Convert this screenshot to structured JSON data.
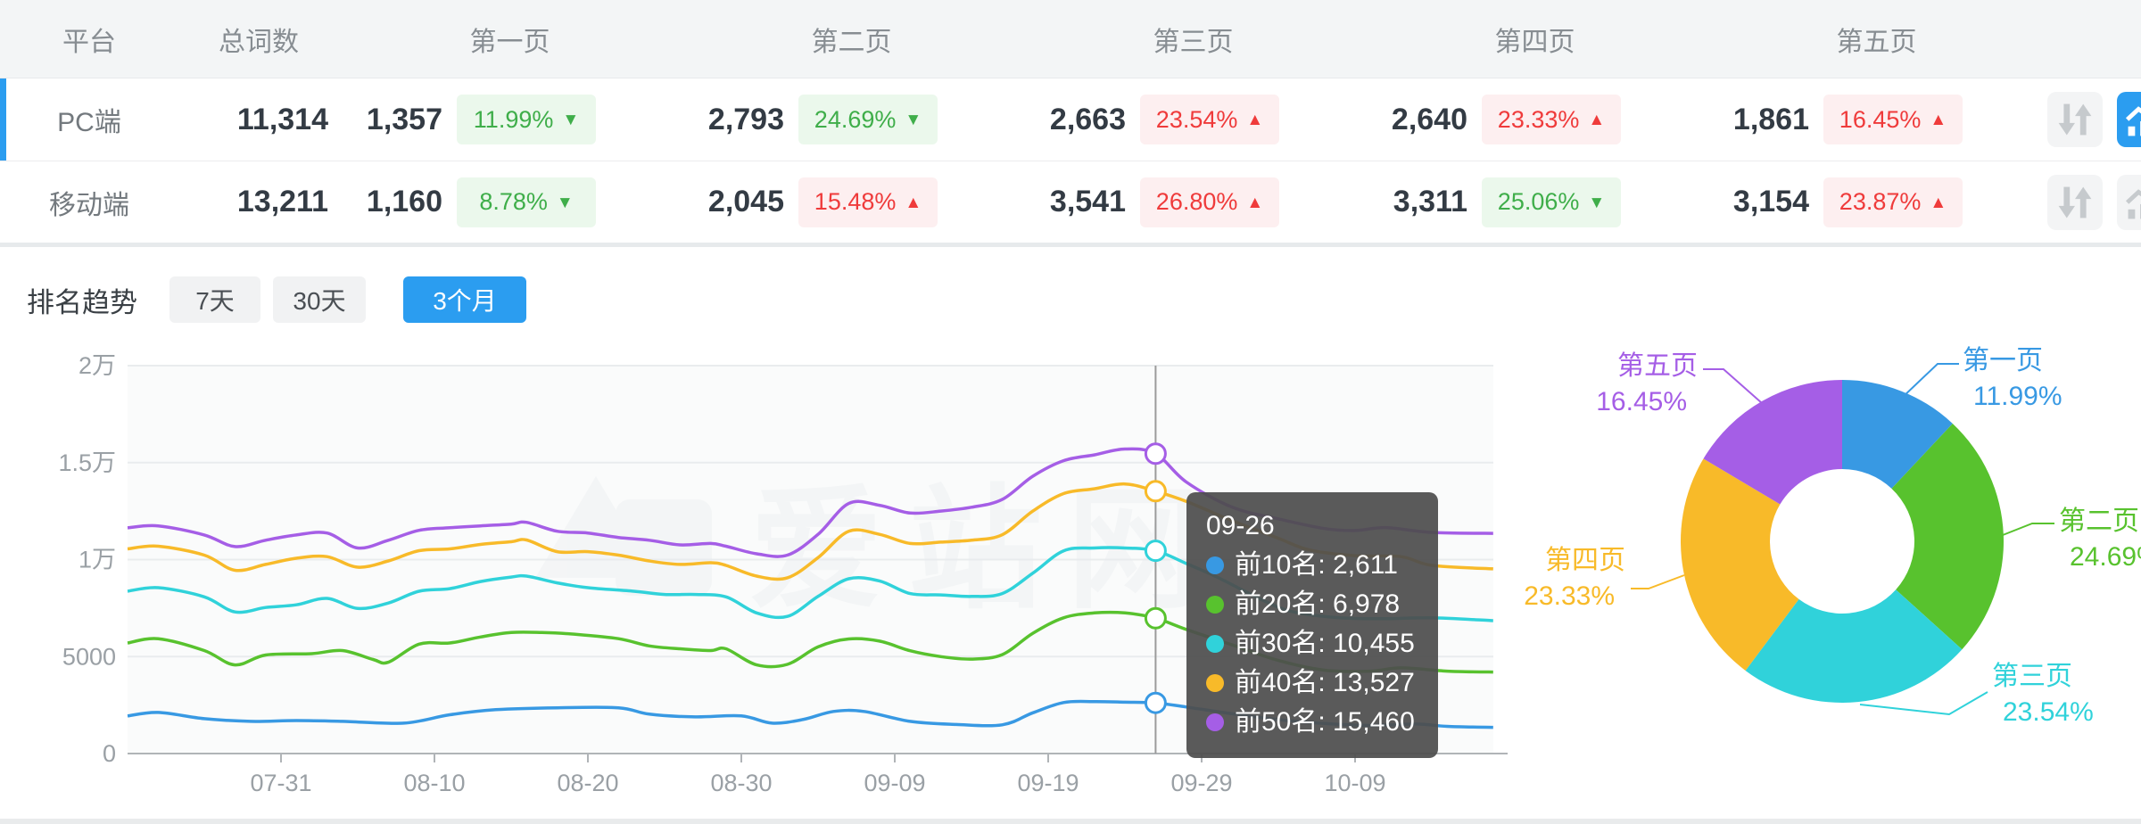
{
  "table": {
    "headers": [
      "平台",
      "总词数",
      "第一页",
      "第二页",
      "第三页",
      "第四页",
      "第五页"
    ],
    "rows": [
      {
        "platform": "PC端",
        "total": "11,314",
        "active": true,
        "pages": [
          {
            "value": "1,357",
            "pct": "11.99%",
            "dir": "down",
            "tone": "green"
          },
          {
            "value": "2,793",
            "pct": "24.69%",
            "dir": "down",
            "tone": "green"
          },
          {
            "value": "2,663",
            "pct": "23.54%",
            "dir": "up",
            "tone": "red"
          },
          {
            "value": "2,640",
            "pct": "23.33%",
            "dir": "up",
            "tone": "red"
          },
          {
            "value": "1,861",
            "pct": "16.45%",
            "dir": "up",
            "tone": "red"
          }
        ]
      },
      {
        "platform": "移动端",
        "total": "13,211",
        "active": false,
        "pages": [
          {
            "value": "1,160",
            "pct": "8.78%",
            "dir": "down",
            "tone": "green"
          },
          {
            "value": "2,045",
            "pct": "15.48%",
            "dir": "up",
            "tone": "red"
          },
          {
            "value": "3,541",
            "pct": "26.80%",
            "dir": "up",
            "tone": "red"
          },
          {
            "value": "3,311",
            "pct": "25.06%",
            "dir": "down",
            "tone": "green"
          },
          {
            "value": "3,154",
            "pct": "23.87%",
            "dir": "up",
            "tone": "red"
          }
        ]
      }
    ]
  },
  "trend": {
    "title": "排名趋势",
    "ranges": [
      "7天",
      "30天",
      "3个月"
    ],
    "active_range": "3个月"
  },
  "watermark": "爱站网",
  "colors": {
    "accent": "#2b9df0",
    "badge_green": "#3fae4a",
    "badge_red": "#ef3b3b",
    "series": {
      "top10": "#3899e3",
      "top20": "#58c22e",
      "top30": "#30d2da",
      "top40": "#f8ba29",
      "top50": "#a55ee6"
    }
  },
  "tooltip": {
    "title": "09-26",
    "items": [
      {
        "label": "前10名",
        "value": "2,611",
        "color": "#3899e3"
      },
      {
        "label": "前20名",
        "value": "6,978",
        "color": "#58c22e"
      },
      {
        "label": "前30名",
        "value": "10,455",
        "color": "#30d2da"
      },
      {
        "label": "前40名",
        "value": "13,527",
        "color": "#f8ba29"
      },
      {
        "label": "前50名",
        "value": "15,460",
        "color": "#a55ee6"
      }
    ]
  },
  "chart_data": [
    {
      "type": "line",
      "title": "排名趋势 (3个月)",
      "x_unit": "days since 07-21",
      "x_ticks": [
        {
          "day": 10,
          "label": "07-31"
        },
        {
          "day": 20,
          "label": "08-10"
        },
        {
          "day": 30,
          "label": "08-20"
        },
        {
          "day": 40,
          "label": "08-30"
        },
        {
          "day": 50,
          "label": "09-09"
        },
        {
          "day": 60,
          "label": "09-19"
        },
        {
          "day": 70,
          "label": "09-29"
        },
        {
          "day": 80,
          "label": "10-09"
        }
      ],
      "y_ticks": [
        "0",
        "5000",
        "1万",
        "1.5万",
        "2万"
      ],
      "ylim": [
        0,
        20000
      ],
      "grid": true,
      "crosshair_day": 67,
      "crosshair_date": "09-26",
      "marker_values": [
        2611,
        6978,
        10455,
        13527,
        15460
      ],
      "series": [
        {
          "name": "前10名",
          "color": "#3899e3",
          "points": [
            [
              0,
              1940
            ],
            [
              2,
              2120
            ],
            [
              5,
              1800
            ],
            [
              8,
              1660
            ],
            [
              11,
              1700
            ],
            [
              14,
              1660
            ],
            [
              18,
              1570
            ],
            [
              21,
              2000
            ],
            [
              24,
              2260
            ],
            [
              28,
              2360
            ],
            [
              32,
              2360
            ],
            [
              34,
              2030
            ],
            [
              37,
              1890
            ],
            [
              40,
              1940
            ],
            [
              42,
              1570
            ],
            [
              44,
              1750
            ],
            [
              46,
              2170
            ],
            [
              48,
              2170
            ],
            [
              51,
              1660
            ],
            [
              54,
              1500
            ],
            [
              57,
              1480
            ],
            [
              59,
              2100
            ],
            [
              61,
              2630
            ],
            [
              63,
              2680
            ],
            [
              65,
              2650
            ],
            [
              67,
              2611
            ],
            [
              69,
              2400
            ],
            [
              72,
              2050
            ],
            [
              75,
              1750
            ],
            [
              78,
              1550
            ],
            [
              81,
              1450
            ],
            [
              84,
              1520
            ],
            [
              86,
              1400
            ],
            [
              89,
              1350
            ]
          ]
        },
        {
          "name": "前20名",
          "color": "#58c22e",
          "points": [
            [
              0,
              5700
            ],
            [
              2,
              5920
            ],
            [
              5,
              5310
            ],
            [
              7,
              4570
            ],
            [
              9,
              5080
            ],
            [
              12,
              5150
            ],
            [
              14,
              5310
            ],
            [
              16,
              4850
            ],
            [
              17,
              4710
            ],
            [
              19,
              5640
            ],
            [
              21,
              5700
            ],
            [
              23,
              6010
            ],
            [
              25,
              6240
            ],
            [
              27,
              6240
            ],
            [
              29,
              6160
            ],
            [
              32,
              5920
            ],
            [
              34,
              5550
            ],
            [
              36,
              5400
            ],
            [
              38,
              5310
            ],
            [
              39,
              5400
            ],
            [
              41,
              4570
            ],
            [
              43,
              4600
            ],
            [
              45,
              5500
            ],
            [
              47,
              5910
            ],
            [
              49,
              5800
            ],
            [
              51,
              5300
            ],
            [
              53,
              5000
            ],
            [
              55,
              4870
            ],
            [
              57,
              5100
            ],
            [
              59,
              6200
            ],
            [
              61,
              7000
            ],
            [
              63,
              7250
            ],
            [
              65,
              7250
            ],
            [
              67,
              6978
            ],
            [
              69,
              6400
            ],
            [
              72,
              5600
            ],
            [
              75,
              4800
            ],
            [
              78,
              4300
            ],
            [
              81,
              4250
            ],
            [
              83,
              4420
            ],
            [
              86,
              4250
            ],
            [
              89,
              4200
            ]
          ]
        },
        {
          "name": "前30名",
          "color": "#30d2da",
          "points": [
            [
              0,
              8370
            ],
            [
              2,
              8550
            ],
            [
              5,
              8080
            ],
            [
              7,
              7300
            ],
            [
              9,
              7530
            ],
            [
              11,
              7670
            ],
            [
              13,
              8000
            ],
            [
              15,
              7480
            ],
            [
              17,
              7760
            ],
            [
              19,
              8370
            ],
            [
              21,
              8500
            ],
            [
              23,
              8870
            ],
            [
              25,
              9100
            ],
            [
              26,
              9150
            ],
            [
              28,
              8800
            ],
            [
              30,
              8550
            ],
            [
              33,
              8370
            ],
            [
              35,
              8200
            ],
            [
              37,
              8200
            ],
            [
              39,
              8080
            ],
            [
              41,
              7250
            ],
            [
              43,
              7070
            ],
            [
              45,
              8100
            ],
            [
              47,
              9010
            ],
            [
              49,
              8900
            ],
            [
              51,
              8250
            ],
            [
              53,
              8180
            ],
            [
              55,
              8100
            ],
            [
              57,
              8250
            ],
            [
              59,
              9300
            ],
            [
              61,
              10450
            ],
            [
              63,
              10600
            ],
            [
              65,
              10600
            ],
            [
              67,
              10455
            ],
            [
              69,
              9800
            ],
            [
              71,
              9100
            ],
            [
              74,
              7900
            ],
            [
              76,
              7300
            ],
            [
              79,
              7000
            ],
            [
              82,
              6950
            ],
            [
              85,
              7000
            ],
            [
              89,
              6850
            ]
          ]
        },
        {
          "name": "前40名",
          "color": "#f8ba29",
          "points": [
            [
              0,
              10550
            ],
            [
              2,
              10690
            ],
            [
              5,
              10230
            ],
            [
              7,
              9450
            ],
            [
              9,
              9750
            ],
            [
              11,
              10070
            ],
            [
              13,
              10150
            ],
            [
              15,
              9610
            ],
            [
              17,
              9930
            ],
            [
              19,
              10460
            ],
            [
              21,
              10550
            ],
            [
              23,
              10780
            ],
            [
              25,
              10920
            ],
            [
              26,
              11010
            ],
            [
              28,
              10410
            ],
            [
              30,
              10410
            ],
            [
              32,
              10230
            ],
            [
              34,
              9930
            ],
            [
              36,
              9750
            ],
            [
              38,
              9840
            ],
            [
              39,
              9700
            ],
            [
              41,
              9150
            ],
            [
              43,
              9060
            ],
            [
              45,
              10100
            ],
            [
              47,
              11460
            ],
            [
              49,
              11300
            ],
            [
              51,
              10830
            ],
            [
              53,
              10900
            ],
            [
              55,
              11000
            ],
            [
              57,
              11280
            ],
            [
              59,
              12500
            ],
            [
              61,
              13400
            ],
            [
              63,
              13650
            ],
            [
              65,
              13900
            ],
            [
              67,
              13527
            ],
            [
              69,
              13000
            ],
            [
              72,
              12000
            ],
            [
              75,
              11100
            ],
            [
              77,
              10500
            ],
            [
              80,
              10200
            ],
            [
              83,
              10150
            ],
            [
              85,
              9700
            ],
            [
              89,
              9520
            ]
          ]
        },
        {
          "name": "前50名",
          "color": "#a55ee6",
          "points": [
            [
              0,
              11640
            ],
            [
              2,
              11740
            ],
            [
              5,
              11270
            ],
            [
              7,
              10670
            ],
            [
              9,
              11000
            ],
            [
              11,
              11270
            ],
            [
              13,
              11370
            ],
            [
              15,
              10600
            ],
            [
              17,
              11000
            ],
            [
              19,
              11510
            ],
            [
              21,
              11640
            ],
            [
              23,
              11740
            ],
            [
              25,
              11830
            ],
            [
              26,
              11920
            ],
            [
              28,
              11460
            ],
            [
              30,
              11370
            ],
            [
              32,
              11140
            ],
            [
              34,
              11000
            ],
            [
              36,
              10760
            ],
            [
              38,
              10830
            ],
            [
              39,
              10690
            ],
            [
              41,
              10300
            ],
            [
              43,
              10230
            ],
            [
              45,
              11300
            ],
            [
              47,
              12890
            ],
            [
              49,
              12800
            ],
            [
              51,
              12400
            ],
            [
              53,
              12500
            ],
            [
              55,
              12700
            ],
            [
              57,
              13100
            ],
            [
              59,
              14300
            ],
            [
              61,
              15100
            ],
            [
              63,
              15400
            ],
            [
              65,
              15700
            ],
            [
              67,
              15460
            ],
            [
              69,
              14000
            ],
            [
              72,
              12700
            ],
            [
              75,
              12100
            ],
            [
              78,
              11600
            ],
            [
              80,
              11500
            ],
            [
              82,
              11650
            ],
            [
              85,
              11400
            ],
            [
              89,
              11350
            ]
          ]
        }
      ]
    },
    {
      "type": "pie",
      "donut": true,
      "slices": [
        {
          "label": "第一页",
          "value": 11.99,
          "pct": "11.99%",
          "color": "#3899e3"
        },
        {
          "label": "第二页",
          "value": 24.69,
          "pct": "24.69%",
          "color": "#58c22e"
        },
        {
          "label": "第三页",
          "value": 23.54,
          "pct": "23.54%",
          "color": "#30d2da"
        },
        {
          "label": "第四页",
          "value": 23.33,
          "pct": "23.33%",
          "color": "#f8ba29"
        },
        {
          "label": "第五页",
          "value": 16.45,
          "pct": "16.45%",
          "color": "#a55ee6"
        }
      ]
    }
  ]
}
